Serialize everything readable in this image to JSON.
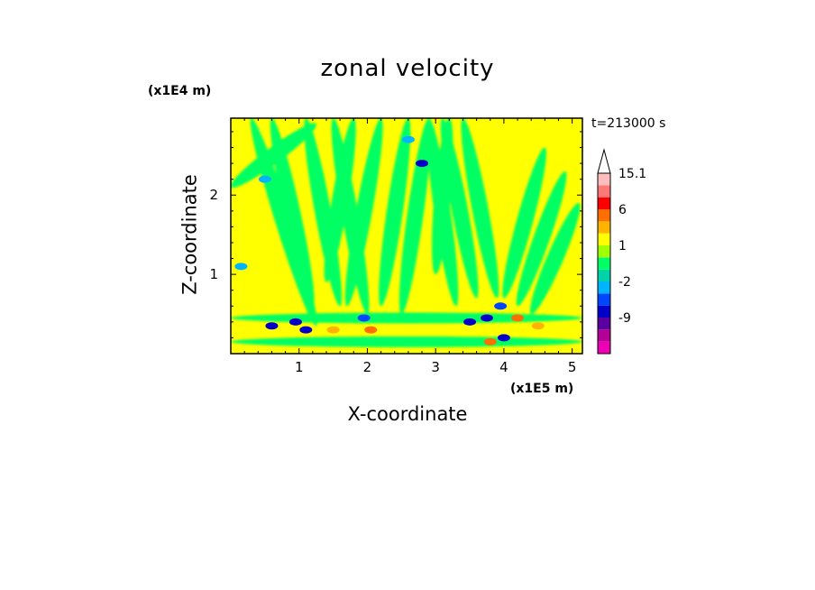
{
  "chart_data": {
    "type": "heatmap",
    "title": "zonal velocity",
    "xlabel": "X-coordinate",
    "ylabel": "Z-coordinate",
    "x_multiplier": "(x1E5 m)",
    "y_multiplier": "(x1E4 m)",
    "time_label": "t=213000 s",
    "xlim": [
      0.0,
      5.15
    ],
    "ylim": [
      0.0,
      2.97
    ],
    "x_ticks": [
      1,
      2,
      3,
      4,
      5
    ],
    "y_ticks": [
      1,
      2
    ],
    "colorbar": {
      "labels": [
        {
          "text": "15.1",
          "value": 15.1
        },
        {
          "text": "6",
          "value": 6
        },
        {
          "text": "1",
          "value": 1
        },
        {
          "text": "-2",
          "value": -2
        },
        {
          "text": "-9",
          "value": -9
        }
      ],
      "levels": [
        -15,
        -12,
        -9,
        -6,
        -3,
        -2,
        -1,
        0,
        1,
        2,
        3,
        6,
        9,
        12,
        15.1
      ],
      "colors": [
        "#ee00b4",
        "#b40096",
        "#5a00a0",
        "#0000c8",
        "#0046ff",
        "#00b4ff",
        "#00d2aa",
        "#00ff64",
        "#a0ff00",
        "#ffff00",
        "#ffb400",
        "#ff6e00",
        "#ff0000",
        "#ff7878",
        "#ffbebe"
      ],
      "extend_max": true
    },
    "background_color": "#ffff00",
    "bands": [
      {
        "x": [
          0.0,
          1.25
        ],
        "z": [
          2.1,
          2.9
        ],
        "sign": 1,
        "color": "#00ff64"
      },
      {
        "x": [
          1.25,
          0.3
        ],
        "z": [
          0.35,
          2.97
        ],
        "sign": -1,
        "color": "#00ff64"
      },
      {
        "x": [
          1.2,
          0.6
        ],
        "z": [
          0.6,
          2.97
        ],
        "sign": -1,
        "color": "#00ff64"
      },
      {
        "x": [
          1.4,
          1.8
        ],
        "z": [
          0.9,
          2.97
        ],
        "sign": 1,
        "color": "#00ff64"
      },
      {
        "x": [
          1.6,
          1.1
        ],
        "z": [
          0.6,
          2.97
        ],
        "sign": -1,
        "color": "#00ff64"
      },
      {
        "x": [
          1.7,
          2.2
        ],
        "z": [
          0.6,
          2.97
        ],
        "sign": 1,
        "color": "#00ff64"
      },
      {
        "x": [
          2.0,
          1.5
        ],
        "z": [
          0.5,
          2.97
        ],
        "sign": -1,
        "color": "#00ff64"
      },
      {
        "x": [
          2.2,
          2.6
        ],
        "z": [
          0.6,
          2.97
        ],
        "sign": 1,
        "color": "#00ff64"
      },
      {
        "x": [
          2.5,
          2.9
        ],
        "z": [
          0.5,
          2.97
        ],
        "sign": 1,
        "color": "#00ff64"
      },
      {
        "x": [
          3.0,
          3.2
        ],
        "z": [
          1.0,
          2.97
        ],
        "sign": 1,
        "color": "#00ff64"
      },
      {
        "x": [
          3.3,
          2.9
        ],
        "z": [
          0.6,
          2.97
        ],
        "sign": -1,
        "color": "#00ff64"
      },
      {
        "x": [
          3.6,
          3.1
        ],
        "z": [
          0.7,
          2.97
        ],
        "sign": -1,
        "color": "#00ff64"
      },
      {
        "x": [
          3.9,
          3.4
        ],
        "z": [
          0.7,
          2.97
        ],
        "sign": -1,
        "color": "#00ff64"
      },
      {
        "x": [
          4.0,
          4.6
        ],
        "z": [
          0.7,
          2.6
        ],
        "sign": 1,
        "color": "#00ff64"
      },
      {
        "x": [
          4.2,
          4.9
        ],
        "z": [
          0.6,
          2.3
        ],
        "sign": 1,
        "color": "#00ff64"
      },
      {
        "x": [
          4.4,
          5.1
        ],
        "z": [
          0.5,
          1.9
        ],
        "sign": 1,
        "color": "#00ff64"
      },
      {
        "x": [
          0.0,
          5.15
        ],
        "z": [
          0.45,
          0.45
        ],
        "sign": 0,
        "color": "#00ff64"
      },
      {
        "x": [
          0.0,
          5.15
        ],
        "z": [
          0.15,
          0.15
        ],
        "sign": 0,
        "color": "#00ff64"
      }
    ],
    "patches": [
      {
        "x": 0.6,
        "z": 0.35,
        "color": "#0000c8"
      },
      {
        "x": 0.95,
        "z": 0.4,
        "color": "#0000c8"
      },
      {
        "x": 1.1,
        "z": 0.3,
        "color": "#0000c8"
      },
      {
        "x": 1.95,
        "z": 0.45,
        "color": "#0046ff"
      },
      {
        "x": 3.5,
        "z": 0.4,
        "color": "#0000c8"
      },
      {
        "x": 3.75,
        "z": 0.45,
        "color": "#0000c8"
      },
      {
        "x": 4.0,
        "z": 0.2,
        "color": "#0000c8"
      },
      {
        "x": 3.95,
        "z": 0.6,
        "color": "#0046ff"
      },
      {
        "x": 4.2,
        "z": 0.45,
        "color": "#ff6e00"
      },
      {
        "x": 4.5,
        "z": 0.35,
        "color": "#ffb400"
      },
      {
        "x": 3.8,
        "z": 0.15,
        "color": "#ff6e00"
      },
      {
        "x": 2.05,
        "z": 0.3,
        "color": "#ff6e00"
      },
      {
        "x": 1.5,
        "z": 0.3,
        "color": "#ffb400"
      },
      {
        "x": 2.8,
        "z": 2.4,
        "color": "#0000c8"
      },
      {
        "x": 2.6,
        "z": 2.7,
        "color": "#00b4ff"
      },
      {
        "x": 0.15,
        "z": 1.1,
        "color": "#00b4ff"
      },
      {
        "x": 0.5,
        "z": 2.2,
        "color": "#00b4ff"
      }
    ]
  }
}
